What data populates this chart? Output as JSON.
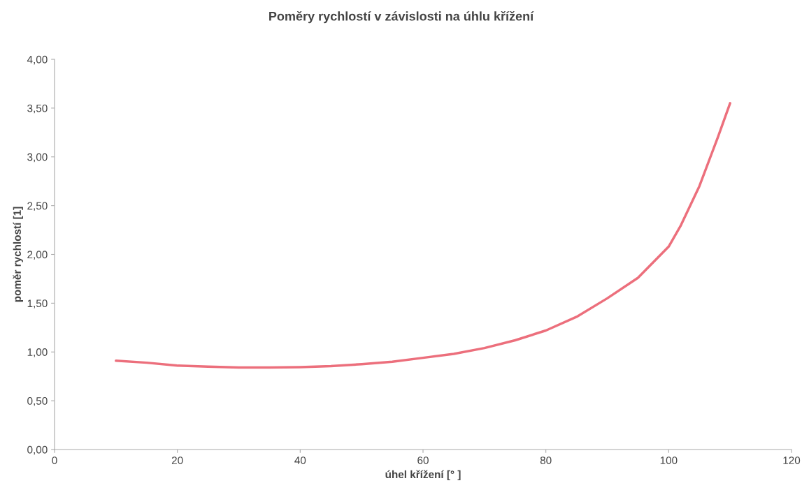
{
  "chart_data": {
    "type": "line",
    "title": "Poměry rychlostí v závislosti na úhlu křížení",
    "xlabel": "úhel křížení [° ]",
    "ylabel": "poměr rychlostí [1]",
    "series": [
      {
        "color": "#ec6f7c",
        "x": [
          10,
          15,
          20,
          25,
          30,
          35,
          40,
          45,
          50,
          55,
          60,
          65,
          70,
          75,
          80,
          85,
          90,
          95,
          100,
          102,
          105,
          108,
          110
        ],
        "values": [
          0.91,
          0.89,
          0.86,
          0.85,
          0.84,
          0.84,
          0.845,
          0.855,
          0.875,
          0.9,
          0.94,
          0.98,
          1.04,
          1.12,
          1.22,
          1.36,
          1.55,
          1.76,
          2.08,
          2.3,
          2.7,
          3.2,
          3.55
        ]
      }
    ],
    "xlim": [
      0,
      120
    ],
    "xticks": [
      0,
      20,
      40,
      60,
      80,
      100,
      120
    ],
    "ylim": [
      0,
      4
    ],
    "yticks": [
      {
        "value": 0,
        "label": "0,00"
      },
      {
        "value": 0.5,
        "label": "0,50"
      },
      {
        "value": 1,
        "label": "1,00"
      },
      {
        "value": 1.5,
        "label": "1,50"
      },
      {
        "value": 2,
        "label": "2,00"
      },
      {
        "value": 2.5,
        "label": "2,50"
      },
      {
        "value": 3,
        "label": "3,00"
      },
      {
        "value": 3.5,
        "label": "3,50"
      },
      {
        "value": 4,
        "label": "4,00"
      }
    ],
    "grid": false,
    "marker": "none",
    "line_style": "solid"
  }
}
